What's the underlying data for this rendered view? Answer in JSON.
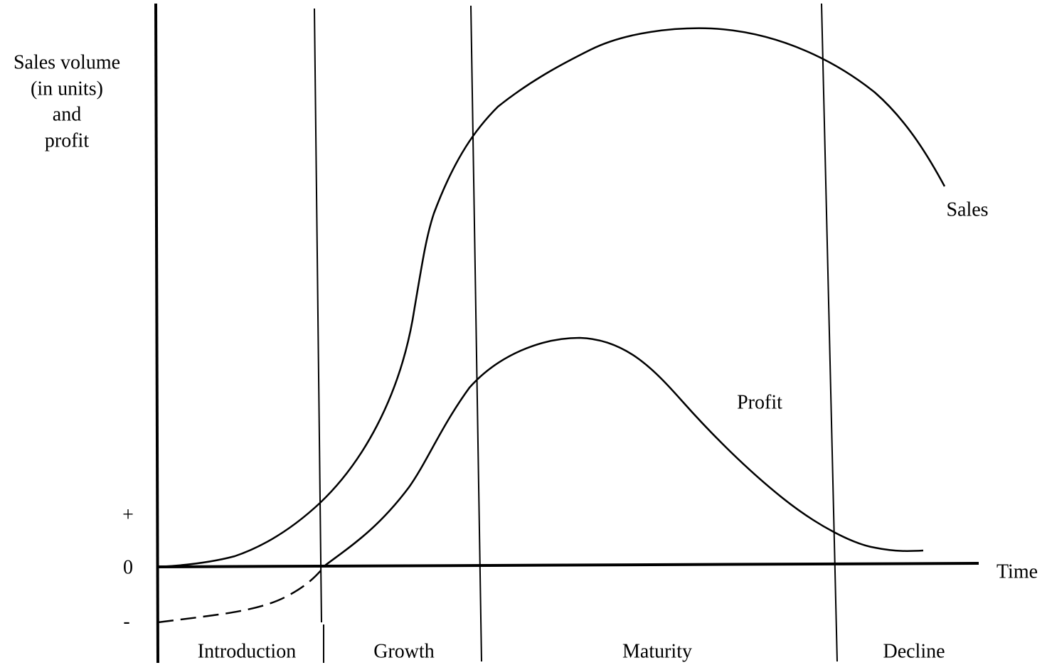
{
  "y_axis": {
    "label_lines": [
      "Sales volume",
      "(in units)",
      "and",
      "profit"
    ],
    "marks": [
      "+",
      "0",
      "-"
    ]
  },
  "x_axis": {
    "label": "Time"
  },
  "curves": [
    {
      "label": "Sales"
    },
    {
      "label": "Profit"
    }
  ],
  "stages": [
    "Introduction",
    "Growth",
    "Maturity",
    "Decline"
  ]
}
